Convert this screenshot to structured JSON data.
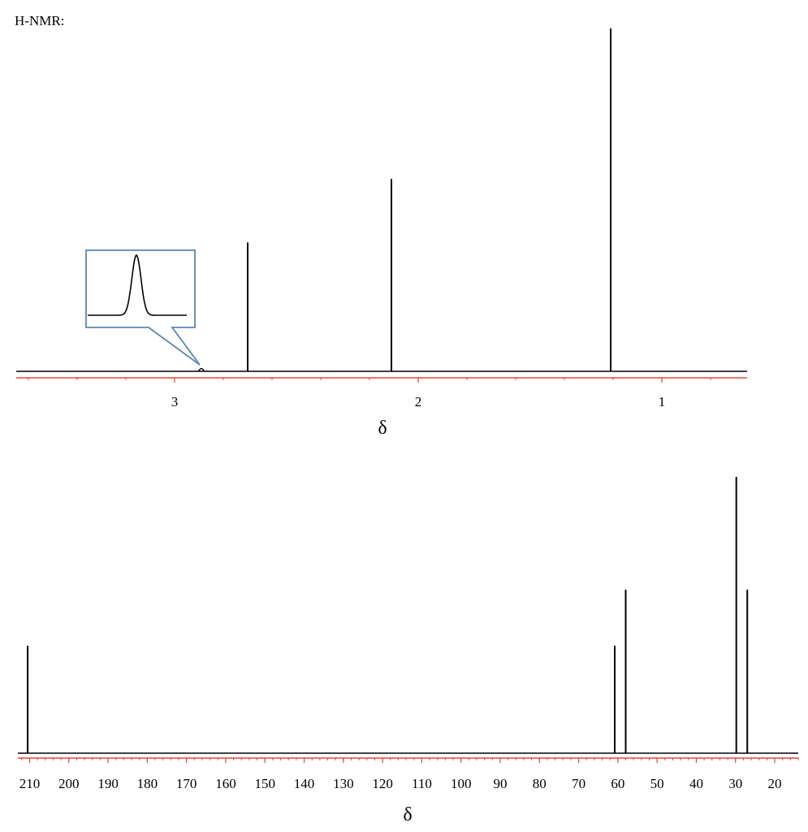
{
  "page": {
    "title": "H-NMR:"
  },
  "chart_data": [
    {
      "type": "line",
      "title": "",
      "xlabel": "δ",
      "ylabel": "",
      "x_reversed": true,
      "xlim": [
        3.65,
        0.65
      ],
      "ylim": [
        0,
        1
      ],
      "grid": false,
      "ticks": [
        3,
        2,
        1
      ],
      "tick_labels": [
        "3",
        "2",
        "1"
      ],
      "peaks": [
        {
          "x": 2.89,
          "y": 0.008
        },
        {
          "x": 2.7,
          "y": 0.376
        },
        {
          "x": 2.11,
          "y": 0.561
        },
        {
          "x": 1.21,
          "y": 1.0
        }
      ],
      "inset": {
        "magnified_peak_x": 2.89,
        "note": ""
      },
      "colors": {
        "trace": "#000000",
        "axis": "#e8453c",
        "inset_border": "#5b86b5"
      }
    },
    {
      "type": "line",
      "title": "",
      "xlabel": "δ",
      "ylabel": "",
      "x_reversed": true,
      "xlim": [
        213,
        14
      ],
      "ylim": [
        0,
        1
      ],
      "grid": false,
      "ticks": [
        210,
        200,
        190,
        180,
        170,
        160,
        150,
        140,
        130,
        120,
        110,
        100,
        90,
        80,
        70,
        60,
        50,
        40,
        30,
        20
      ],
      "tick_labels": [
        "210",
        "200",
        "190",
        "180",
        "170",
        "160",
        "150",
        "140",
        "130",
        "120",
        "110",
        "100",
        "90",
        "80",
        "70",
        "60",
        "50",
        "40",
        "30",
        "20"
      ],
      "peaks": [
        {
          "x": 210.5,
          "y": 0.389
        },
        {
          "x": 60.8,
          "y": 0.389
        },
        {
          "x": 58.0,
          "y": 0.592
        },
        {
          "x": 29.8,
          "y": 1.0
        },
        {
          "x": 27.0,
          "y": 0.592
        }
      ],
      "colors": {
        "trace": "#000000",
        "axis": "#e8453c"
      }
    }
  ]
}
